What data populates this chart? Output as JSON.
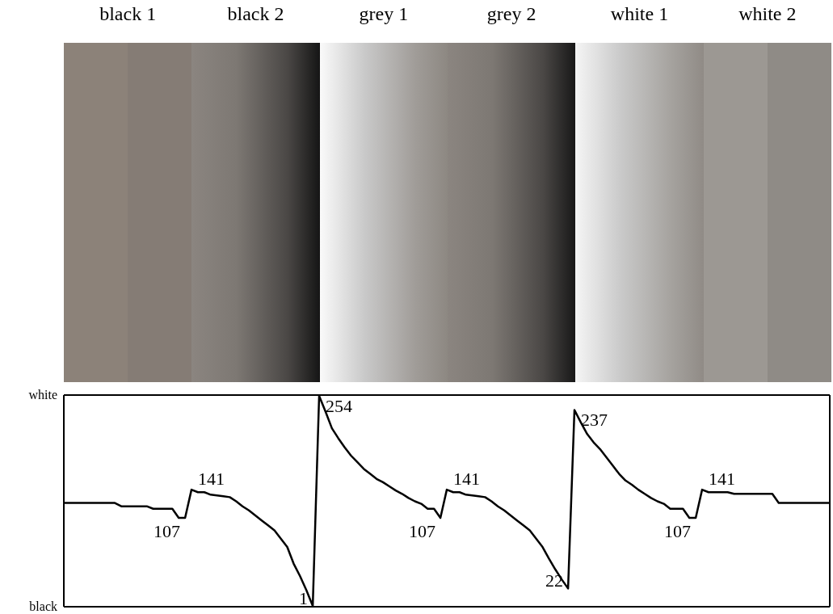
{
  "chart_data": {
    "type": "line",
    "ylim": [
      0,
      255
    ],
    "annotations": [
      "black 1",
      "black 2",
      "grey 1",
      "grey 2",
      "white 1",
      "white 2",
      "white",
      "black"
    ],
    "categories": [
      null,
      null,
      null,
      null,
      null,
      null,
      null,
      null,
      null,
      null,
      null,
      null,
      null,
      null,
      null,
      null,
      null,
      null,
      null,
      null,
      null,
      null,
      null,
      null,
      null,
      null,
      null,
      null,
      null,
      null,
      null,
      null,
      null,
      null,
      null,
      null,
      null,
      null,
      null,
      null,
      null,
      null,
      null,
      null,
      null,
      null,
      null,
      null,
      null,
      null,
      null,
      null,
      null,
      null,
      null,
      null,
      null,
      null,
      null,
      null,
      null,
      null,
      null,
      null,
      null,
      null,
      null,
      null,
      null,
      null,
      null,
      null,
      null,
      null,
      null,
      null,
      null,
      null,
      null,
      null,
      null,
      null,
      null,
      null,
      null,
      null,
      null,
      null,
      null,
      null,
      null,
      null,
      null,
      null,
      null,
      null,
      null,
      null,
      null,
      null,
      null,
      null,
      null,
      null,
      null,
      null,
      null,
      null,
      null,
      null,
      null,
      null,
      null,
      null,
      null,
      null,
      null,
      null,
      null,
      null,
      null
    ],
    "series": [
      {
        "color": "#000000",
        "values": [
          125,
          125,
          125,
          125,
          125,
          125,
          125,
          125,
          125,
          121,
          121,
          121,
          121,
          121,
          118,
          118,
          118,
          118,
          107,
          107,
          141,
          138,
          138,
          135,
          134,
          133,
          132,
          127,
          121,
          116,
          110,
          104,
          98,
          92,
          82,
          72,
          52,
          37,
          20,
          1,
          254,
          235,
          215,
          203,
          192,
          182,
          174,
          166,
          160,
          154,
          150,
          145,
          140,
          136,
          131,
          127,
          124,
          118,
          118,
          107,
          141,
          138,
          138,
          135,
          134,
          133,
          132,
          127,
          121,
          116,
          110,
          104,
          98,
          92,
          82,
          72,
          58,
          45,
          33,
          22,
          237,
          222,
          208,
          198,
          190,
          180,
          170,
          160,
          152,
          147,
          141,
          136,
          131,
          127,
          124,
          118,
          118,
          118,
          107,
          107,
          141,
          138,
          138,
          138,
          138,
          136,
          136,
          136,
          136,
          136,
          136,
          136,
          125,
          125,
          125,
          125,
          125,
          125,
          125,
          125,
          125
        ],
        "value_labels": [
          null,
          null,
          null,
          null,
          null,
          null,
          null,
          null,
          null,
          null,
          null,
          null,
          null,
          null,
          null,
          null,
          null,
          null,
          null,
          "107",
          "141",
          null,
          null,
          null,
          null,
          null,
          null,
          null,
          null,
          null,
          null,
          null,
          null,
          null,
          null,
          null,
          null,
          null,
          null,
          "1",
          "254",
          null,
          null,
          null,
          null,
          null,
          null,
          null,
          null,
          null,
          null,
          null,
          null,
          null,
          null,
          null,
          null,
          null,
          null,
          "107",
          "141",
          null,
          null,
          null,
          null,
          null,
          null,
          null,
          null,
          null,
          null,
          null,
          null,
          null,
          null,
          null,
          null,
          null,
          null,
          "22",
          "237",
          null,
          null,
          null,
          null,
          null,
          null,
          null,
          null,
          null,
          null,
          null,
          null,
          null,
          null,
          null,
          null,
          null,
          null,
          "107",
          "141",
          null,
          null,
          null,
          null,
          null,
          null,
          null,
          null,
          null,
          null,
          null,
          null,
          null,
          null,
          null,
          null,
          null,
          null,
          null,
          null
        ]
      }
    ],
    "line_style": "solid",
    "legend": false,
    "grid": false
  }
}
